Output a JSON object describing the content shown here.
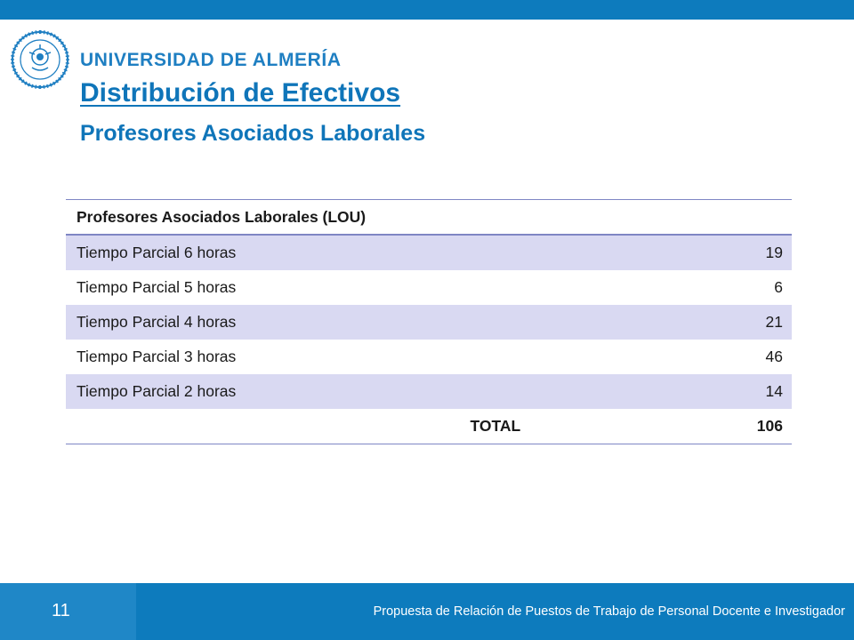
{
  "header": {
    "university": "UNIVERSIDAD DE ALMERÍA",
    "seal_text": "IN LUMINE SAPIENTIA · UNIVERSITAS ALMERIENSIS"
  },
  "slide": {
    "title": "Distribución de Efectivos",
    "subtitle": "Profesores Asociados Laborales"
  },
  "table": {
    "header": "Profesores Asociados Laborales (LOU)",
    "rows": [
      {
        "label": "Tiempo Parcial 6 horas",
        "value": "19"
      },
      {
        "label": "Tiempo Parcial 5 horas",
        "value": "6"
      },
      {
        "label": "Tiempo Parcial 4 horas",
        "value": "21"
      },
      {
        "label": "Tiempo Parcial 3 horas",
        "value": "46"
      },
      {
        "label": "Tiempo Parcial 2 horas",
        "value": "14"
      }
    ],
    "total_label": "TOTAL",
    "total_value": "106"
  },
  "footer": {
    "page_number": "11",
    "text": "Propuesta de Relación de Puestos de Trabajo de Personal Docente e Investigador"
  },
  "colors": {
    "brand_blue": "#0d7bbd",
    "row_band": "#d9d9f2",
    "rule": "#7f86c4"
  }
}
